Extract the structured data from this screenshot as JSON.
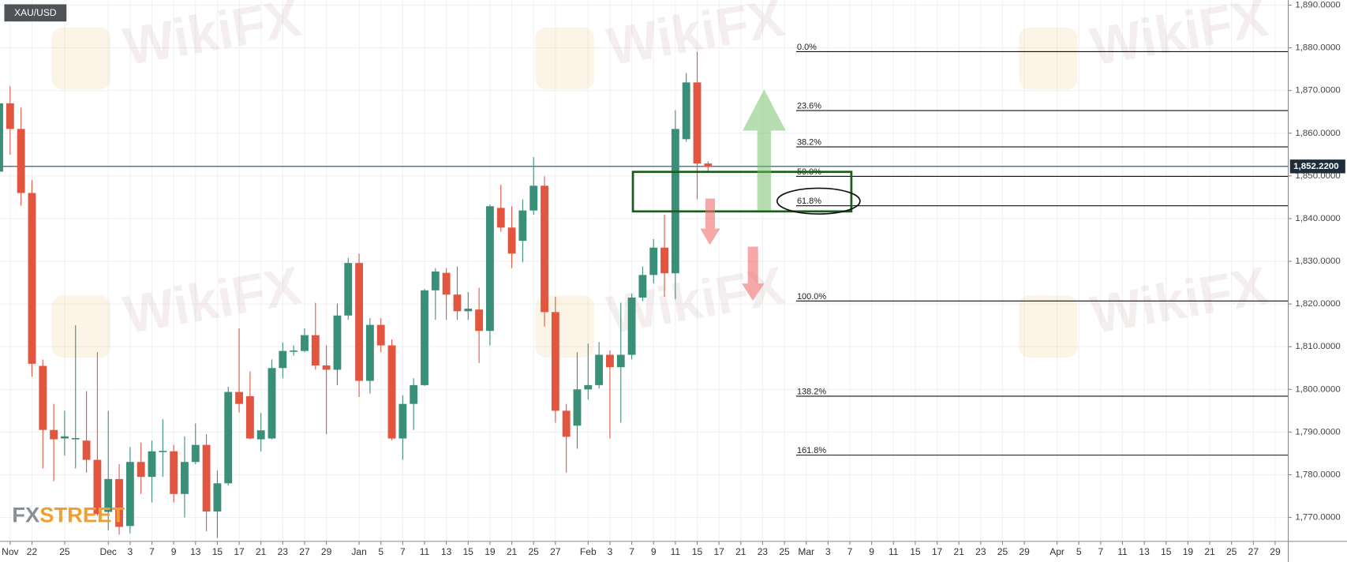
{
  "chart_data": {
    "type": "candlestick",
    "symbol": "XAU/USD",
    "watermark": "WikiFX",
    "logo": {
      "prefix": "FX",
      "suffix": "STREET"
    },
    "up_color": "#3a8f79",
    "down_color": "#e2553f",
    "grid": true,
    "categories": [
      null,
      "Nov",
      null,
      "22",
      null,
      null,
      "25",
      null,
      null,
      null,
      "Dec",
      null,
      "3",
      null,
      "7",
      null,
      "9",
      null,
      "13",
      null,
      "15",
      null,
      "17",
      null,
      "21",
      null,
      "23",
      null,
      "27",
      null,
      "29",
      null,
      null,
      "Jan",
      null,
      "5",
      null,
      "7",
      null,
      "11",
      null,
      "13",
      null,
      "15",
      null,
      "19",
      null,
      "21",
      null,
      "25",
      null,
      "27",
      null,
      null,
      "Feb",
      null,
      "3",
      null,
      "7",
      null,
      "9",
      null,
      "11",
      null,
      "15",
      null,
      "17",
      null,
      "21",
      null,
      "23",
      null,
      "25",
      null,
      "Mar",
      null,
      "3",
      null,
      "7",
      null,
      "9",
      null,
      "11",
      null,
      "15",
      null,
      "17",
      null,
      "21",
      null,
      "23",
      null,
      "25",
      null,
      "29",
      null,
      null,
      "Apr",
      null,
      "5",
      null,
      "7",
      null,
      "11",
      null,
      "13",
      null,
      "15",
      null,
      "19",
      null,
      "21",
      null,
      "25",
      null,
      "27",
      null,
      "29"
    ],
    "open": [
      1851,
      1867,
      1861,
      1846,
      1805.5,
      1790.5,
      1788.5,
      1788.3,
      1788,
      1783.5,
      1771.3,
      1779,
      1768,
      1783,
      1779.5,
      1785.3,
      1785.5,
      1775.5,
      1783,
      1787,
      1771.4,
      1778,
      1799.4,
      1798.4,
      1788.3,
      1788.5,
      1805,
      1808.8,
      1809,
      1812.7,
      1805.6,
      1804.6,
      1817.3,
      1829.6,
      1802,
      1815.1,
      1810.3,
      1788.5,
      1796.6,
      1801,
      1823.2,
      1827.3,
      1822.2,
      1818.3,
      1818.7,
      1813.7,
      1842.5,
      1837.9,
      1834.8,
      1841.9,
      1847.7,
      1818.1,
      1795,
      1791.5,
      1800,
      1801,
      1808.1,
      1805.2,
      1808.1,
      1821.5,
      1826.8,
      1833.2,
      1827.2,
      1858.6,
      1871.9,
      1852.9,
      null,
      null,
      null,
      null,
      null,
      null,
      null,
      null,
      null,
      null,
      null,
      null,
      null,
      null,
      null,
      null,
      null,
      null,
      null,
      null,
      null,
      null,
      null,
      null,
      null,
      null,
      null,
      null,
      null,
      null,
      null,
      null,
      null,
      null,
      null,
      null,
      null,
      null,
      null,
      null,
      null,
      null,
      null,
      null,
      null,
      null,
      null,
      null,
      null,
      null,
      null,
      null
    ],
    "high": [
      1868,
      1871,
      1866,
      1849,
      1807,
      1796.6,
      1795,
      1815,
      1799.6,
      1808.7,
      1795,
      1782.5,
      1786.5,
      1787.5,
      1788,
      1793,
      1787,
      1789,
      1792,
      1789.5,
      1781,
      1800.6,
      1814.3,
      1804.2,
      1794.5,
      1807,
      1811,
      1810.3,
      1814.3,
      1820.3,
      1810.3,
      1820.1,
      1830.8,
      1831.8,
      1816.7,
      1816.7,
      1811.7,
      1798.6,
      1802.6,
      1823.5,
      1828.4,
      1828.4,
      1828.8,
      1822.8,
      1823.8,
      1843.3,
      1847.9,
      1842.9,
      1844.5,
      1854.4,
      1849.9,
      1821.7,
      1796.6,
      1808.7,
      1810.7,
      1811.1,
      1809.1,
      1820.3,
      1822.4,
      1828.8,
      1835.2,
      1840.9,
      1865.4,
      1874.1,
      1879.1,
      1853.4,
      null,
      null,
      null,
      null,
      null,
      null,
      null,
      null,
      null,
      null,
      null,
      null,
      null,
      null,
      null,
      null,
      null,
      null,
      null,
      null,
      null,
      null,
      null,
      null,
      null,
      null,
      null,
      null,
      null,
      null,
      null,
      null,
      null,
      null,
      null,
      null,
      null,
      null,
      null,
      null,
      null,
      null,
      null,
      null,
      null,
      null,
      null,
      null,
      null,
      null,
      null,
      null
    ],
    "low": [
      1849,
      1855,
      1843,
      1803,
      1781.5,
      1778.5,
      1784.5,
      1781.5,
      1780.5,
      1770.4,
      1767,
      1766,
      1766.3,
      1775.5,
      1773.5,
      1779.5,
      1773.5,
      1770,
      1782.5,
      1766.8,
      1765.2,
      1777.5,
      1794.6,
      1788.3,
      1785.5,
      1788.3,
      1802.6,
      1807.9,
      1808.7,
      1804.6,
      1789.5,
      1801,
      1816.3,
      1798.2,
      1799,
      1808.7,
      1788.1,
      1783.5,
      1790.5,
      1800.8,
      1816.3,
      1816.3,
      1816.3,
      1816.3,
      1806.2,
      1810.3,
      1836.9,
      1828.4,
      1829.8,
      1840.9,
      1814.7,
      1792.2,
      1780.5,
      1786.1,
      1797.6,
      1800.2,
      1788.5,
      1792.2,
      1807,
      1820.7,
      1824.8,
      1821.7,
      1821.1,
      1858,
      1844.5,
      1851,
      null,
      null,
      null,
      null,
      null,
      null,
      null,
      null,
      null,
      null,
      null,
      null,
      null,
      null,
      null,
      null,
      null,
      null,
      null,
      null,
      null,
      null,
      null,
      null,
      null,
      null,
      null,
      null,
      null,
      null,
      null,
      null,
      null,
      null,
      null,
      null,
      null,
      null,
      null,
      null,
      null,
      null,
      null,
      null,
      null,
      null,
      null,
      null,
      null,
      null,
      null,
      null
    ],
    "close": [
      1867,
      1861,
      1846,
      1806,
      1790.5,
      1788.3,
      1789,
      1788.6,
      1783.5,
      1770.8,
      1779,
      1767.8,
      1783,
      1779.5,
      1785.5,
      1785.6,
      1775.5,
      1783,
      1787,
      1771.4,
      1778,
      1799.4,
      1796.6,
      1788.5,
      1790.4,
      1805,
      1809,
      1809.1,
      1812.7,
      1805.6,
      1804.6,
      1817.3,
      1829.6,
      1802,
      1815.1,
      1810.3,
      1788.5,
      1796.6,
      1801,
      1823.2,
      1827.6,
      1822.2,
      1818.3,
      1818.9,
      1813.7,
      1842.9,
      1837.9,
      1831.8,
      1841.9,
      1847.7,
      1818.1,
      1795,
      1788.9,
      1800,
      1801,
      1808.1,
      1805.2,
      1808.1,
      1821.5,
      1826.8,
      1833.2,
      1827.2,
      1861,
      1871.9,
      1852.9,
      1852.2,
      null,
      null,
      null,
      null,
      null,
      null,
      null,
      null,
      null,
      null,
      null,
      null,
      null,
      null,
      null,
      null,
      null,
      null,
      null,
      null,
      null,
      null,
      null,
      null,
      null,
      null,
      null,
      null,
      null,
      null,
      null,
      null,
      null,
      null,
      null,
      null,
      null,
      null,
      null,
      null,
      null,
      null,
      null,
      null,
      null,
      null,
      null,
      null,
      null,
      null,
      null,
      null
    ],
    "last_price": {
      "value": 1852.22,
      "label": "1,852.2200"
    },
    "ylim": [
      1764.4,
      1891.2
    ],
    "yticks": [
      {
        "value": 1770,
        "label": "1,770.0000"
      },
      {
        "value": 1780,
        "label": "1,780.0000"
      },
      {
        "value": 1790,
        "label": "1,790.0000"
      },
      {
        "value": 1800,
        "label": "1,800.0000"
      },
      {
        "value": 1810,
        "label": "1,810.0000"
      },
      {
        "value": 1820,
        "label": "1,820.0000"
      },
      {
        "value": 1830,
        "label": "1,830.0000"
      },
      {
        "value": 1840,
        "label": "1,840.0000"
      },
      {
        "value": 1850,
        "label": "1,850.0000"
      },
      {
        "value": 1860,
        "label": "1,860.0000"
      },
      {
        "value": 1870,
        "label": "1,870.0000"
      },
      {
        "value": 1880,
        "label": "1,880.0000"
      },
      {
        "value": 1890,
        "label": "1,890.0000"
      }
    ],
    "fib_levels": [
      {
        "label": "0.0%",
        "value": 1879.1
      },
      {
        "label": "23.6%",
        "value": 1865.3
      },
      {
        "label": "38.2%",
        "value": 1856.8
      },
      {
        "label": "50.0%",
        "value": 1849.9
      },
      {
        "label": "61.8%",
        "value": 1843.0
      },
      {
        "label": "100.0%",
        "value": 1820.7
      },
      {
        "label": "138.2%",
        "value": 1798.4
      },
      {
        "label": "161.8%",
        "value": 1784.6
      }
    ]
  }
}
